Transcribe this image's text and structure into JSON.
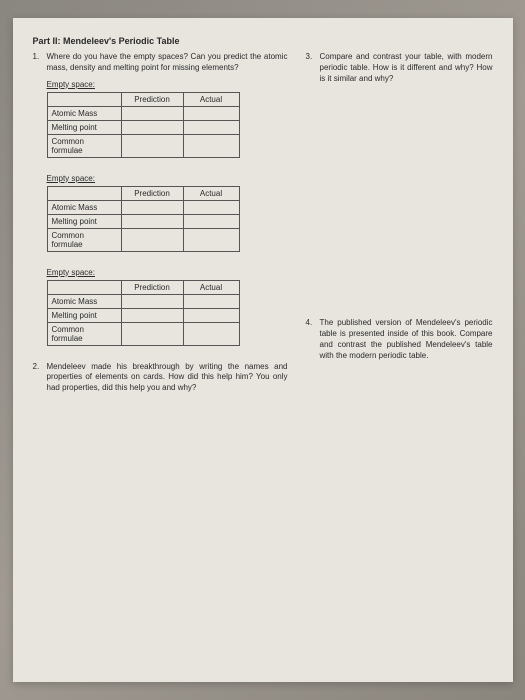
{
  "partTitle": "Part II: Mendeleev's Periodic Table",
  "q1": {
    "num": "1.",
    "text": "Where do you have the empty spaces? Can you predict the atomic mass, density and melting point for missing elements?"
  },
  "tableBlock": {
    "emptyLabel": "Empty space:",
    "headers": {
      "blank": "",
      "prediction": "Prediction",
      "actual": "Actual"
    },
    "rows": {
      "r1": "Atomic Mass",
      "r2": "Melting point",
      "r3": "Common formulae"
    }
  },
  "q2": {
    "num": "2.",
    "text": "Mendeleev made his breakthrough by writing the names and properties of elements on cards. How did this help him? You only had properties, did this help you and why?"
  },
  "q3": {
    "num": "3.",
    "text": "Compare and contrast your table, with modern periodic table. How is it different and why? How is it similar and why?"
  },
  "q4": {
    "num": "4.",
    "text": "The published version of Mendeleev's periodic table is presented inside of this book. Compare and contrast the published Mendeleev's table with the modern periodic table."
  }
}
